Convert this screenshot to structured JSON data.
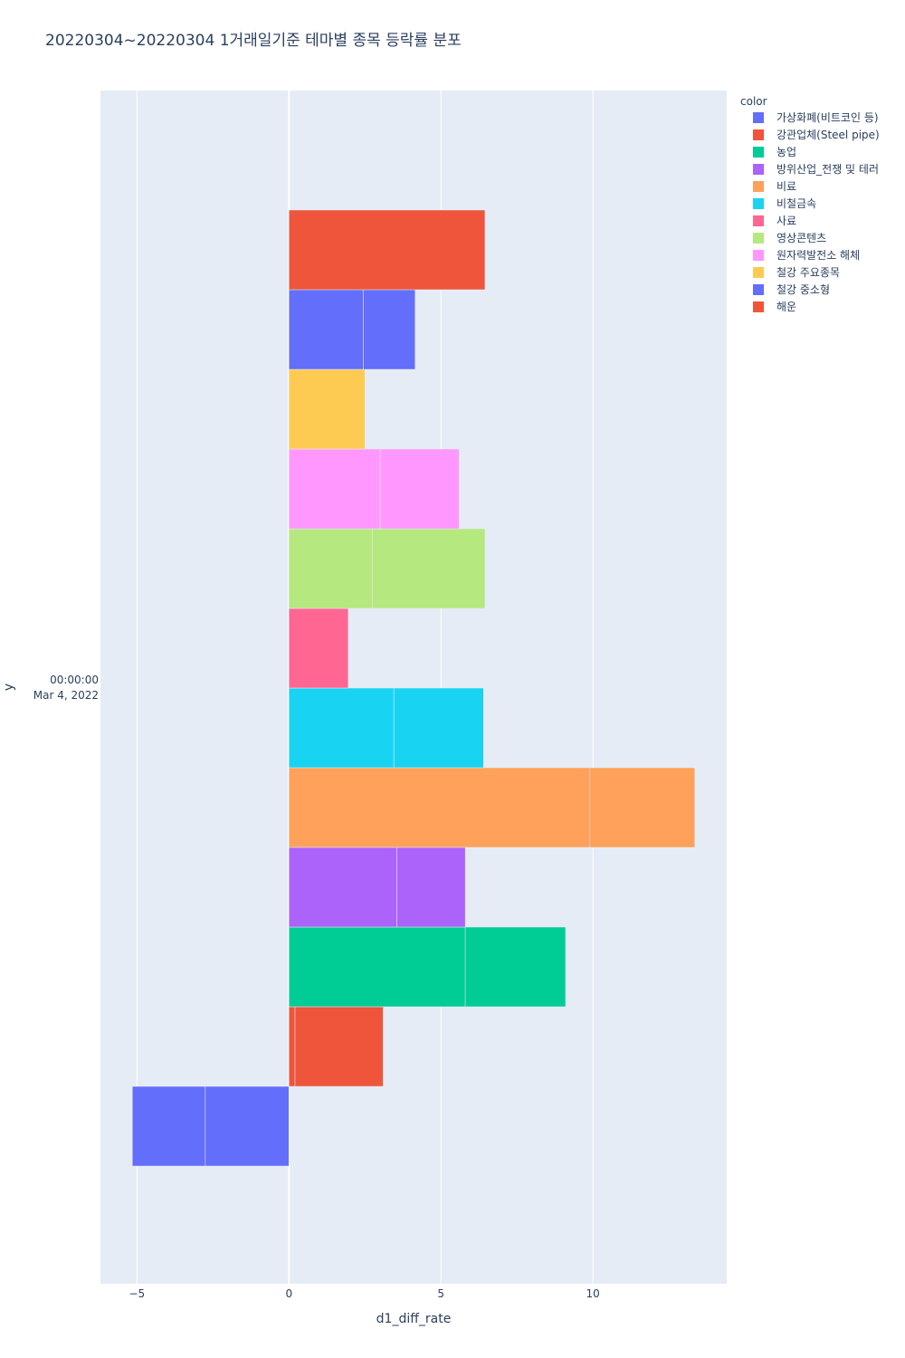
{
  "chart_data": {
    "type": "bar",
    "orientation": "horizontal",
    "barmode": "stacked",
    "title": "20220304~20220304 1거래일기준 테마별 종목 등락률 분포",
    "xlabel": "d1_diff_rate",
    "ylabel": "y",
    "xlim": [
      -6.2,
      14.4
    ],
    "xticks": [
      -5,
      0,
      5,
      10
    ],
    "xtick_labels": [
      "−5",
      "0",
      "5",
      "10"
    ],
    "ytick_label_line1": "00:00:00",
    "ytick_label_line2": "Mar 4, 2022",
    "grid": true,
    "legend_title": "color",
    "legend_position": "top-right",
    "series": [
      {
        "name": "가상화폐(비트코인 등)",
        "color": "#636efa",
        "segments": [
          [
            -5.15,
            -2.75
          ],
          [
            -2.75,
            0
          ]
        ]
      },
      {
        "name": "강관업체(Steel pipe)",
        "color": "#ef553b",
        "segments": [
          [
            0,
            0.2
          ],
          [
            0.2,
            3.1
          ]
        ]
      },
      {
        "name": "농업",
        "color": "#00cc96",
        "segments": [
          [
            0,
            5.8
          ],
          [
            5.8,
            9.1
          ]
        ]
      },
      {
        "name": "방위산업_전쟁 및 테러",
        "color": "#ab63fa",
        "segments": [
          [
            0,
            3.55
          ],
          [
            3.55,
            5.8
          ]
        ]
      },
      {
        "name": "비료",
        "color": "#ffa15a",
        "segments": [
          [
            0,
            9.9
          ],
          [
            9.9,
            13.35
          ]
        ]
      },
      {
        "name": "비철금속",
        "color": "#19d3f3",
        "segments": [
          [
            0,
            3.45
          ],
          [
            3.45,
            6.4
          ]
        ]
      },
      {
        "name": "사료",
        "color": "#ff6692",
        "segments": [
          [
            0,
            1.95
          ]
        ]
      },
      {
        "name": "영상콘텐츠",
        "color": "#b6e880",
        "segments": [
          [
            0,
            2.75
          ],
          [
            2.75,
            6.45
          ]
        ]
      },
      {
        "name": "원자력발전소 해체",
        "color": "#ff97ff",
        "segments": [
          [
            0,
            3.0
          ],
          [
            3.0,
            5.6
          ]
        ]
      },
      {
        "name": "철강 주요종목",
        "color": "#fecb52",
        "segments": [
          [
            0,
            2.5
          ]
        ]
      },
      {
        "name": "철강 중소형",
        "color": "#636efa",
        "segments": [
          [
            0,
            2.45
          ],
          [
            2.45,
            4.15
          ]
        ]
      },
      {
        "name": "해운",
        "color": "#ef553b",
        "segments": [
          [
            0,
            6.45
          ]
        ]
      }
    ]
  }
}
